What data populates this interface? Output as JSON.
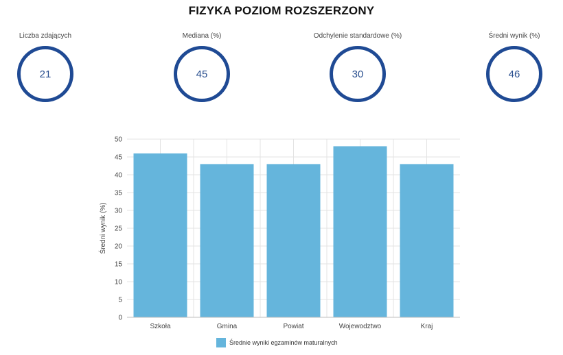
{
  "header": {
    "title": "FIZYKA POZIOM ROZSZERZONY"
  },
  "stats": [
    {
      "label": "Liczba zdających",
      "value": "21"
    },
    {
      "label": "Mediana (%)",
      "value": "45"
    },
    {
      "label": "Odchylenie standardowe (%)",
      "value": "30"
    },
    {
      "label": "Średni wynik (%)",
      "value": "46"
    }
  ],
  "colors": {
    "ring": "#1f4a94",
    "bar": "#65b5dc",
    "grid": "#e3e3e3",
    "axis": "#bdbdbd"
  },
  "chart_data": {
    "type": "bar",
    "categories": [
      "Szkoła",
      "Gmina",
      "Powiat",
      "Wojewodztwo",
      "Kraj"
    ],
    "series": [
      {
        "name": "Średnie wyniki egzaminów maturalnych",
        "values": [
          46,
          43,
          43,
          48,
          43
        ]
      }
    ],
    "ylabel": "Średni wynik (%)",
    "xlabel": "",
    "ylim": [
      0,
      50
    ],
    "yticks": [
      0,
      5,
      10,
      15,
      20,
      25,
      30,
      35,
      40,
      45,
      50
    ],
    "grid": true,
    "legend_position": "bottom"
  }
}
